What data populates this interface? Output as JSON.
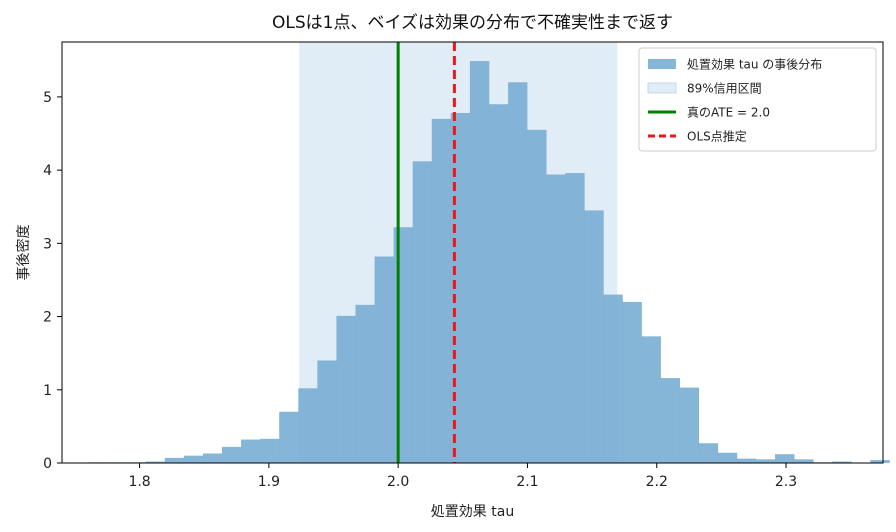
{
  "chart_data": {
    "type": "histogram",
    "title": "OLSは1点、ベイズは効果の分布で不確実性まで返す",
    "xlabel": "処置効果 tau",
    "ylabel": "事後密度",
    "xlim": [
      1.74,
      2.375
    ],
    "ylim": [
      0,
      5.75
    ],
    "xticks": [
      1.8,
      1.9,
      2.0,
      2.1,
      2.2,
      2.3
    ],
    "xtick_labels": [
      "1.8",
      "1.9",
      "2.0",
      "2.1",
      "2.2",
      "2.3"
    ],
    "yticks": [
      0,
      1,
      2,
      3,
      4,
      5
    ],
    "ytick_labels": [
      "0",
      "1",
      "2",
      "3",
      "4",
      "5"
    ],
    "grid": false,
    "legend_position": "top-right",
    "histogram": {
      "name": "処置効果 tau の事後分布",
      "color": "#7bafd4",
      "bin_start": 1.7605,
      "bin_width": 0.01475,
      "densities": [
        0.01,
        0.01,
        0.01,
        0.02,
        0.07,
        0.1,
        0.13,
        0.22,
        0.32,
        0.33,
        0.7,
        1.02,
        1.4,
        2.01,
        2.16,
        2.82,
        3.22,
        4.12,
        4.7,
        4.78,
        5.49,
        4.9,
        5.2,
        4.55,
        3.94,
        3.96,
        3.45,
        2.3,
        2.2,
        1.73,
        1.16,
        1.03,
        0.27,
        0.14,
        0.06,
        0.05,
        0.12,
        0.05,
        0.01,
        0.02,
        0.0,
        0.04
      ]
    },
    "interval": {
      "name": "89%信用区間",
      "lower": 1.9235,
      "upper": 2.1695,
      "color": "#dbe9f4"
    },
    "lines": [
      {
        "name": "真のATE = 2.0",
        "x": 2.0,
        "color": "#008000",
        "style": "solid"
      },
      {
        "name": "OLS点推定",
        "x": 2.0435,
        "color": "#e8191a",
        "style": "dashed"
      }
    ]
  }
}
